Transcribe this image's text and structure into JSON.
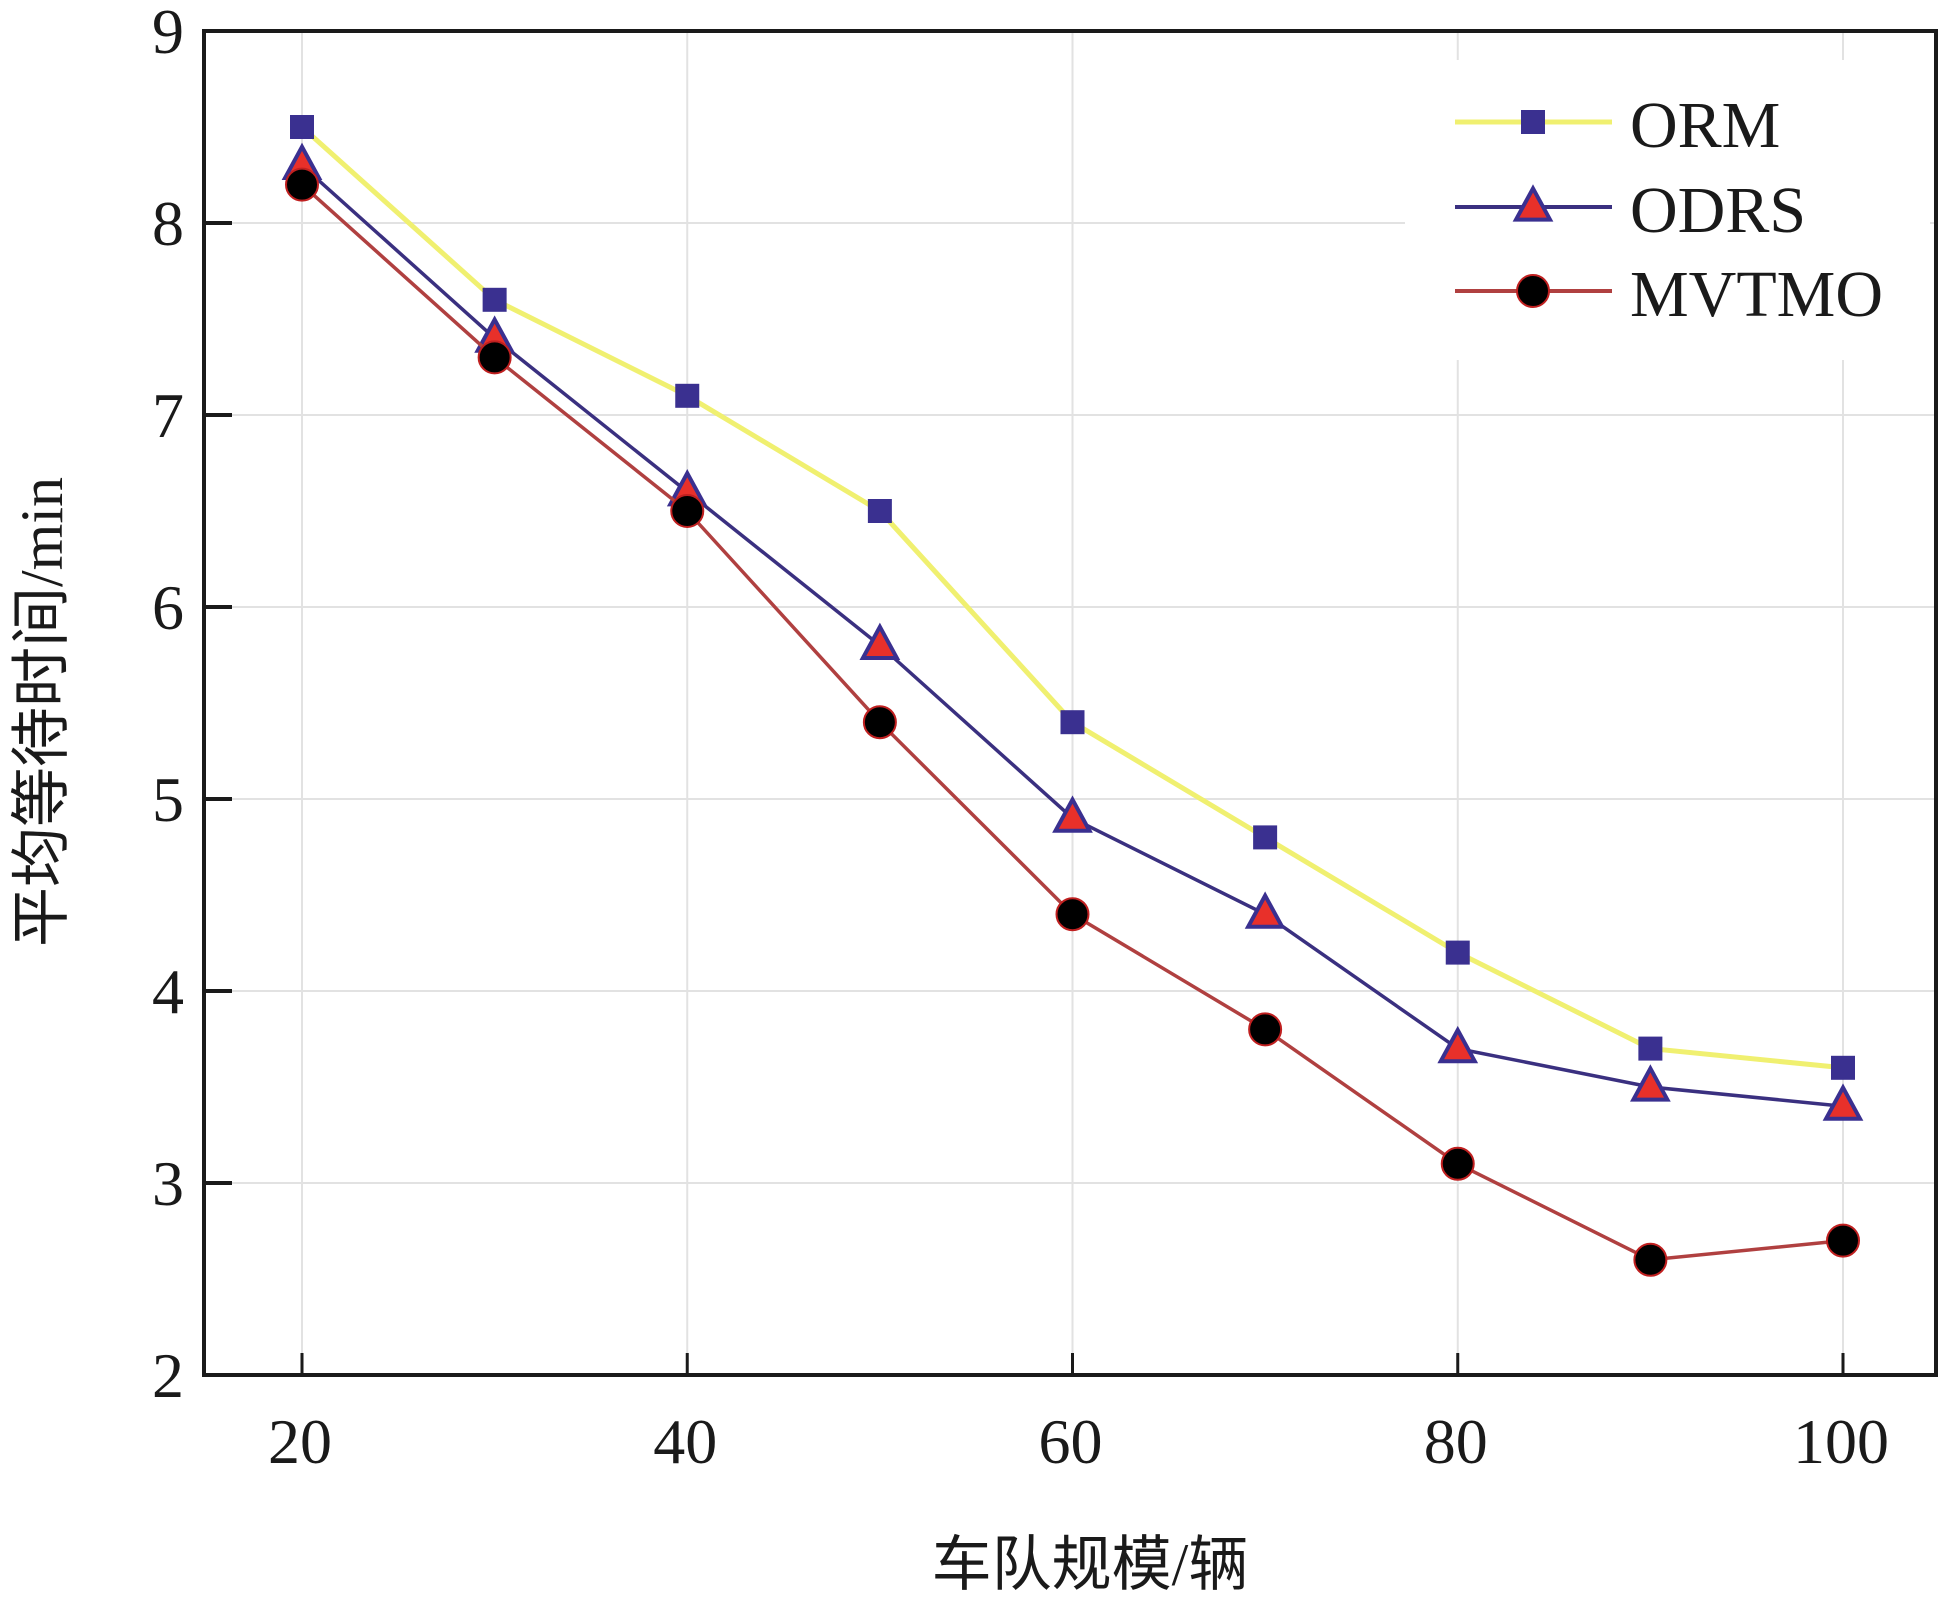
{
  "chart_data": {
    "type": "line",
    "title": "",
    "xlabel": "车队规模/辆",
    "ylabel": "平均等待时间/min",
    "x": [
      20,
      30,
      40,
      50,
      60,
      70,
      80,
      90,
      100
    ],
    "xlim": [
      15,
      105
    ],
    "ylim": [
      2,
      9
    ],
    "xticks": [
      20,
      40,
      60,
      80,
      100
    ],
    "xtick_labels": [
      "20",
      "40",
      "60",
      "80",
      "100"
    ],
    "yticks": [
      2,
      3,
      4,
      5,
      6,
      7,
      8,
      9
    ],
    "ytick_labels": [
      "2",
      "3",
      "4",
      "5",
      "6",
      "7",
      "8",
      "9"
    ],
    "grid": true,
    "legend_position": "top-right",
    "series": [
      {
        "name": "ORM",
        "marker": "square",
        "line_color": "#f0f070",
        "marker_fill": "#3a3090",
        "marker_stroke": "#3a3090",
        "values": [
          8.5,
          7.6,
          7.1,
          6.5,
          5.4,
          4.8,
          4.2,
          3.7,
          3.6
        ]
      },
      {
        "name": "ODRS",
        "marker": "triangle",
        "line_color": "#3a3080",
        "marker_fill": "#e8302a",
        "marker_stroke": "#3a3090",
        "values": [
          8.3,
          7.4,
          6.6,
          5.8,
          4.9,
          4.4,
          3.7,
          3.5,
          3.4
        ]
      },
      {
        "name": "MVTMO",
        "marker": "circle",
        "line_color": "#b04040",
        "marker_fill": "#000000",
        "marker_stroke": "#c02020",
        "values": [
          8.2,
          7.3,
          6.5,
          5.4,
          4.4,
          3.8,
          3.1,
          2.6,
          2.7
        ]
      }
    ]
  }
}
